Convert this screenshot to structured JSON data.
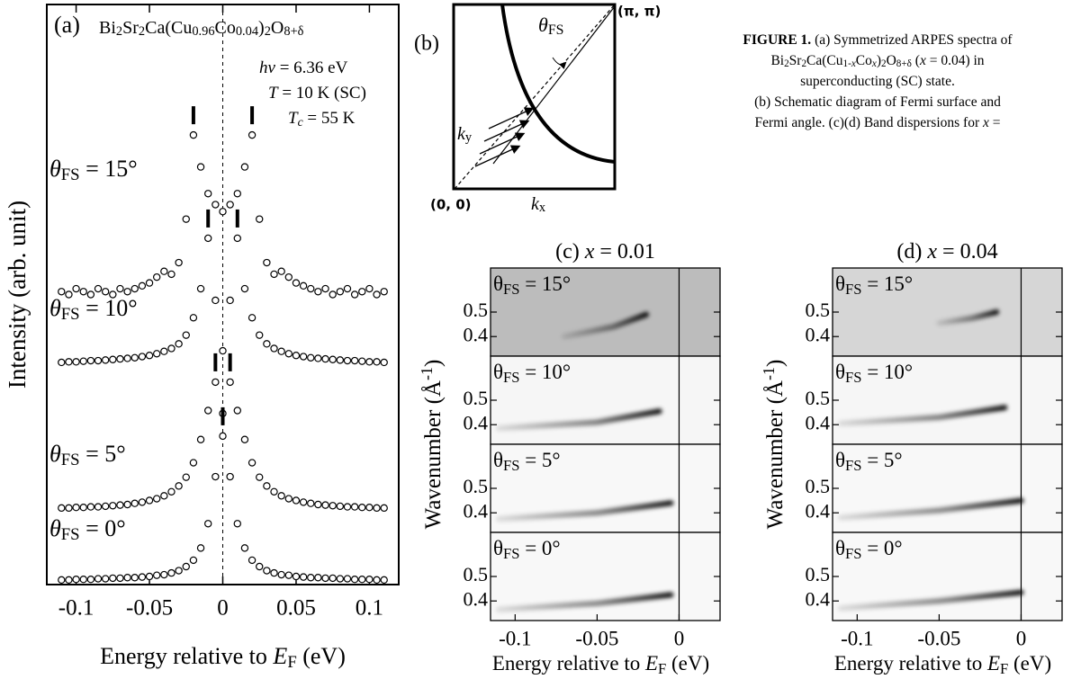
{
  "chart_data": [
    {
      "type": "line",
      "panel_label": "(a)",
      "title": [
        {
          "t": "Bi"
        },
        {
          "t": "2",
          "sub": true
        },
        {
          "t": "Sr"
        },
        {
          "t": "2",
          "sub": true
        },
        {
          "t": "Ca(Cu"
        },
        {
          "t": "0.96",
          "sub": true
        },
        {
          "t": "Co"
        },
        {
          "t": "0.04",
          "sub": true
        },
        {
          "t": ")"
        },
        {
          "t": "2",
          "sub": true
        },
        {
          "t": "O"
        },
        {
          "t": "8+δ",
          "sub": true
        }
      ],
      "annotations": [
        [
          {
            "t": "hν",
            "i": true
          },
          {
            "t": " = 6.36 eV"
          }
        ],
        [
          {
            "t": "T",
            "i": true
          },
          {
            "t": " = 10 K (SC)"
          }
        ],
        [
          {
            "t": "T",
            "i": true
          },
          {
            "t": "c",
            "i": true,
            "sub": true
          },
          {
            "t": " = 55 K"
          }
        ]
      ],
      "xlabel": [
        {
          "t": "Energy relative to "
        },
        {
          "t": "E",
          "i": true
        },
        {
          "t": "F",
          "sub": true
        },
        {
          "t": " (eV)"
        }
      ],
      "ylabel": [
        {
          "t": "Intensity (arb. unit)"
        }
      ],
      "xlim": [
        -0.12,
        0.12
      ],
      "xticks": [
        -0.1,
        -0.05,
        0,
        0.05,
        0.1
      ],
      "ylim": [
        0,
        10
      ],
      "x": [
        -0.11,
        -0.105,
        -0.1,
        -0.095,
        -0.09,
        -0.085,
        -0.08,
        -0.075,
        -0.07,
        -0.065,
        -0.06,
        -0.055,
        -0.05,
        -0.045,
        -0.04,
        -0.035,
        -0.03,
        -0.025,
        -0.02,
        -0.015,
        -0.01,
        -0.005,
        0,
        0.005,
        0.01,
        0.015,
        0.02,
        0.025,
        0.03,
        0.035,
        0.04,
        0.045,
        0.05,
        0.055,
        0.06,
        0.065,
        0.07,
        0.075,
        0.08,
        0.085,
        0.09,
        0.095,
        0.1,
        0.105,
        0.11
      ],
      "series": [
        {
          "name": [
            {
              "t": "θ",
              "i": true
            },
            {
              "t": "FS",
              "sub": true
            },
            {
              "t": " = 15°"
            }
          ],
          "color": "#000000",
          "peaks": [
            -0.02,
            0.02
          ],
          "values": [
            5.05,
            5.0,
            5.1,
            5.05,
            5.0,
            5.1,
            5.05,
            5.0,
            5.1,
            5.05,
            5.1,
            5.15,
            5.2,
            5.3,
            5.4,
            5.35,
            5.55,
            6.3,
            7.75,
            7.2,
            6.74,
            6.55,
            6.43,
            6.55,
            6.74,
            7.2,
            7.75,
            6.3,
            5.55,
            5.35,
            5.4,
            5.3,
            5.2,
            5.15,
            5.1,
            5.05,
            5.1,
            5.0,
            5.05,
            5.1,
            5.0,
            5.05,
            5.1,
            5.0,
            5.05
          ]
        },
        {
          "name": [
            {
              "t": "θ",
              "i": true
            },
            {
              "t": "FS",
              "sub": true
            },
            {
              "t": " = 10°"
            }
          ],
          "color": "#000000",
          "peaks": [
            -0.01,
            0.01
          ],
          "values": [
            3.83,
            3.84,
            3.84,
            3.85,
            3.86,
            3.86,
            3.87,
            3.88,
            3.89,
            3.9,
            3.91,
            3.93,
            3.95,
            3.98,
            4.02,
            4.07,
            4.15,
            4.3,
            4.6,
            5.1,
            5.97,
            4.9,
            4.03,
            4.9,
            5.97,
            5.1,
            4.6,
            4.3,
            4.15,
            4.07,
            4.02,
            3.98,
            3.95,
            3.93,
            3.91,
            3.9,
            3.89,
            3.88,
            3.87,
            3.86,
            3.86,
            3.85,
            3.84,
            3.84,
            3.83
          ]
        },
        {
          "name": [
            {
              "t": "θ",
              "i": true
            },
            {
              "t": "FS",
              "sub": true
            },
            {
              "t": " = 5°"
            }
          ],
          "color": "#000000",
          "peaks": [
            -0.005,
            0.005
          ],
          "values": [
            1.32,
            1.32,
            1.33,
            1.33,
            1.34,
            1.34,
            1.35,
            1.36,
            1.37,
            1.38,
            1.4,
            1.42,
            1.45,
            1.48,
            1.53,
            1.6,
            1.7,
            1.85,
            2.1,
            2.5,
            3.0,
            3.49,
            2.95,
            3.49,
            3.0,
            2.5,
            2.1,
            1.85,
            1.7,
            1.6,
            1.53,
            1.48,
            1.45,
            1.42,
            1.4,
            1.38,
            1.37,
            1.36,
            1.35,
            1.34,
            1.34,
            1.33,
            1.33,
            1.32,
            1.32
          ]
        },
        {
          "name": [
            {
              "t": "θ",
              "i": true
            },
            {
              "t": "FS",
              "sub": true
            },
            {
              "t": " = 0°"
            }
          ],
          "color": "#000000",
          "peaks": [
            0
          ],
          "values": [
            0.08,
            0.08,
            0.09,
            0.09,
            0.09,
            0.1,
            0.1,
            0.11,
            0.11,
            0.12,
            0.12,
            0.13,
            0.14,
            0.16,
            0.17,
            0.2,
            0.24,
            0.31,
            0.42,
            0.63,
            1.05,
            1.86,
            2.56,
            1.86,
            1.05,
            0.63,
            0.42,
            0.31,
            0.24,
            0.2,
            0.17,
            0.16,
            0.14,
            0.13,
            0.12,
            0.12,
            0.11,
            0.11,
            0.1,
            0.1,
            0.09,
            0.09,
            0.09,
            0.08,
            0.08
          ]
        }
      ]
    },
    {
      "type": "dispersion",
      "title": [
        {
          "t": "(c) "
        },
        {
          "t": "x",
          "i": true
        },
        {
          "t": " = 0.01"
        }
      ],
      "xlabel": [
        {
          "t": "Energy relative to "
        },
        {
          "t": "E",
          "i": true
        },
        {
          "t": "F",
          "sub": true
        },
        {
          "t": " (eV)"
        }
      ],
      "ylabel": [
        {
          "t": "Wavenumber (Å"
        },
        {
          "t": "-1",
          "sup": true
        },
        {
          "t": ")"
        }
      ],
      "xlim": [
        -0.115,
        0.025
      ],
      "xticks": [
        -0.1,
        -0.05,
        0
      ],
      "ylim": [
        0.32,
        0.68
      ],
      "yticks": [
        0.5,
        0.4
      ],
      "color": "#000000",
      "subplots": [
        {
          "label": [
            {
              "t": "θ"
            },
            {
              "t": "FS",
              "sub": true
            },
            {
              "t": " = 15°"
            }
          ],
          "background": "#bcbcbc",
          "x": [
            -0.07,
            -0.04,
            -0.02
          ],
          "k": [
            0.4,
            0.44,
            0.49
          ]
        },
        {
          "label": [
            {
              "t": "θ"
            },
            {
              "t": "FS",
              "sub": true
            },
            {
              "t": " = 10°"
            }
          ],
          "background": "#f6f6f6",
          "x": [
            -0.11,
            -0.05,
            -0.012
          ],
          "k": [
            0.385,
            0.41,
            0.455
          ]
        },
        {
          "label": [
            {
              "t": "θ"
            },
            {
              "t": "FS",
              "sub": true
            },
            {
              "t": " = 5°"
            }
          ],
          "background": "#f8f8f8",
          "x": [
            -0.11,
            -0.05,
            -0.005
          ],
          "k": [
            0.375,
            0.4,
            0.44
          ]
        },
        {
          "label": [
            {
              "t": "θ"
            },
            {
              "t": "FS",
              "sub": true
            },
            {
              "t": " = 0°"
            }
          ],
          "background": "#f8f8f8",
          "x": [
            -0.11,
            -0.05,
            -0.005
          ],
          "k": [
            0.365,
            0.39,
            0.425
          ]
        }
      ]
    },
    {
      "type": "dispersion",
      "title": [
        {
          "t": "(d) "
        },
        {
          "t": "x",
          "i": true
        },
        {
          "t": " = 0.04"
        }
      ],
      "xlabel": [
        {
          "t": "Energy relative to "
        },
        {
          "t": "E",
          "i": true
        },
        {
          "t": "F",
          "sub": true
        },
        {
          "t": " (eV)"
        }
      ],
      "ylabel": [
        {
          "t": "Wavenumber (Å"
        },
        {
          "t": "-1",
          "sup": true
        },
        {
          "t": ")"
        }
      ],
      "xlim": [
        -0.115,
        0.025
      ],
      "xticks": [
        -0.1,
        -0.05,
        0
      ],
      "ylim": [
        0.32,
        0.68
      ],
      "yticks": [
        0.5,
        0.4
      ],
      "color": "#000000",
      "subplots": [
        {
          "label": [
            {
              "t": "θ"
            },
            {
              "t": "FS",
              "sub": true
            },
            {
              "t": " = 15°"
            }
          ],
          "background": "#d6d6d6",
          "x": [
            -0.05,
            -0.03,
            -0.015
          ],
          "k": [
            0.455,
            0.475,
            0.5
          ]
        },
        {
          "label": [
            {
              "t": "θ"
            },
            {
              "t": "FS",
              "sub": true
            },
            {
              "t": " = 10°"
            }
          ],
          "background": "#f6f6f6",
          "x": [
            -0.11,
            -0.05,
            -0.01
          ],
          "k": [
            0.405,
            0.43,
            0.47
          ]
        },
        {
          "label": [
            {
              "t": "θ"
            },
            {
              "t": "FS",
              "sub": true
            },
            {
              "t": " = 5°"
            }
          ],
          "background": "#f8f8f8",
          "x": [
            -0.11,
            -0.05,
            0
          ],
          "k": [
            0.38,
            0.41,
            0.45
          ]
        },
        {
          "label": [
            {
              "t": "θ"
            },
            {
              "t": "FS",
              "sub": true
            },
            {
              "t": " = 0°"
            }
          ],
          "background": "#f8f8f8",
          "x": [
            -0.11,
            -0.05,
            0
          ],
          "k": [
            0.37,
            0.4,
            0.435
          ]
        }
      ]
    }
  ],
  "schematic": {
    "label": "(b)",
    "corner_top": "(π, π)",
    "corner_origin": "(0, 0)",
    "angle_label": [
      {
        "t": "θ",
        "i": true
      },
      {
        "t": "FS",
        "sub": true
      }
    ],
    "ky": [
      {
        "t": "k",
        "i": true
      },
      {
        "t": "y",
        "sub": true
      }
    ],
    "kx": [
      {
        "t": "k",
        "i": true
      },
      {
        "t": "x",
        "sub": true
      }
    ]
  },
  "caption": [
    [
      {
        "t": "FIGURE 1.",
        "b": true
      },
      {
        "t": " (a) Symmetrized ARPES spectra of"
      }
    ],
    [
      {
        "t": "Bi"
      },
      {
        "t": "2",
        "sub": true
      },
      {
        "t": "Sr"
      },
      {
        "t": "2",
        "sub": true
      },
      {
        "t": "Ca(Cu"
      },
      {
        "t": "1-",
        "sub": true
      },
      {
        "t": "x",
        "sub": true,
        "i": true
      },
      {
        "t": "Co"
      },
      {
        "t": "x",
        "sub": true,
        "i": true
      },
      {
        "t": ")"
      },
      {
        "t": "2",
        "sub": true
      },
      {
        "t": "O"
      },
      {
        "t": "8+δ",
        "sub": true
      },
      {
        "t": " ("
      },
      {
        "t": "x",
        "i": true
      },
      {
        "t": " = 0.04) in"
      }
    ],
    [
      {
        "t": "superconducting (SC) state."
      }
    ],
    [
      {
        "t": "(b) Schematic diagram of Fermi surface and"
      }
    ],
    [
      {
        "t": "Fermi angle. (c)(d) Band dispersions for "
      },
      {
        "t": "x",
        "i": true
      },
      {
        "t": " ="
      }
    ]
  ]
}
